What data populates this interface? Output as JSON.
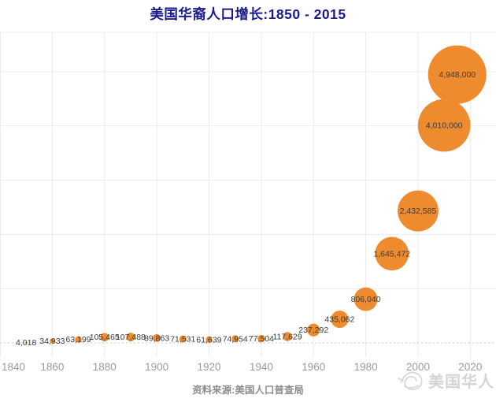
{
  "header": {
    "title": "美国华裔人口增长:1850 - 2015",
    "title_color": "#1b1b8f"
  },
  "footer": {
    "source": "资料来源:美国人口普查局",
    "watermark_label": "美国华人",
    "watermark_icon": "scribble-logo-icon"
  },
  "chart_data": {
    "type": "scatter",
    "subtype": "bubble",
    "title": "美国华裔人口增长:1850 - 2015",
    "points": [
      {
        "year": 1850,
        "value": 4018
      },
      {
        "year": 1860,
        "value": 34933
      },
      {
        "year": 1870,
        "value": 63199
      },
      {
        "year": 1880,
        "value": 105465
      },
      {
        "year": 1890,
        "value": 107488
      },
      {
        "year": 1900,
        "value": 89863
      },
      {
        "year": 1910,
        "value": 71531
      },
      {
        "year": 1920,
        "value": 61639
      },
      {
        "year": 1930,
        "value": 74954
      },
      {
        "year": 1940,
        "value": 77504
      },
      {
        "year": 1950,
        "value": 117629
      },
      {
        "year": 1960,
        "value": 237292
      },
      {
        "year": 1970,
        "value": 435062
      },
      {
        "year": 1980,
        "value": 806040
      },
      {
        "year": 1990,
        "value": 1645472
      },
      {
        "year": 2000,
        "value": 2432585
      },
      {
        "year": 2010,
        "value": 4010000
      },
      {
        "year": 2015,
        "value": 4948000
      }
    ],
    "x_ticks": [
      1840,
      1860,
      1880,
      1900,
      1920,
      1940,
      1960,
      1980,
      2000,
      2020
    ],
    "xlim": [
      1840,
      2030
    ],
    "ylim": [
      0,
      5730000
    ],
    "y_gridline_step": 1000000,
    "grid": true,
    "legend_position": "none",
    "xlabel": "",
    "ylabel": "",
    "bubble_color": "#EF8B2F",
    "label_color": "#3A3A3A",
    "axis_label_color": "#9B9B9B",
    "gridline_color": "#EBEBEB",
    "zero_line_color": "#C9C9C9"
  }
}
